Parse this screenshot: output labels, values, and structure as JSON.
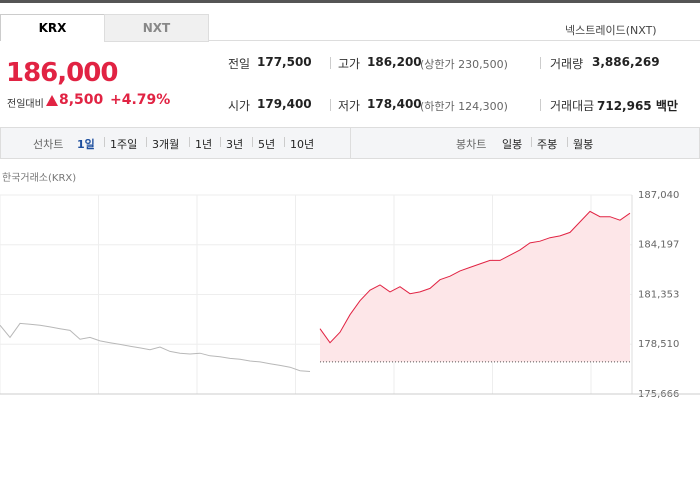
{
  "tabs": [
    "KRX",
    "NXT"
  ],
  "nxt_link": "넥스트레이드(NXT)",
  "price": {
    "current": "186,000",
    "change_label": "전일대비",
    "change": "8,500",
    "change_pct": "+4.79%"
  },
  "stats": [
    [
      {
        "label": "전일",
        "value": "177,500"
      },
      {
        "label": "고가",
        "value": "186,200",
        "note": "(상한가 230,500)"
      },
      {
        "label": "거래량",
        "value": "3,886,269"
      }
    ],
    [
      {
        "label": "시가",
        "value": "179,400"
      },
      {
        "label": "저가",
        "value": "178,400",
        "note": "(하한가 124,300)"
      },
      {
        "label": "거래대금",
        "value": "712,965 백만"
      }
    ]
  ],
  "line_chart": {
    "label": "선차트",
    "periods": [
      "1일",
      "1주일",
      "3개월",
      "1년",
      "3년",
      "5년",
      "10년"
    ]
  },
  "candle_chart": {
    "label": "봉차트",
    "periods": [
      "일봉",
      "주봉",
      "월봉"
    ]
  },
  "chart_data": {
    "type": "line",
    "source": "한국거래소(KRX)",
    "ylim": [
      175666,
      187040
    ],
    "yticks": [
      {
        "value": 187040,
        "label": "187,040"
      },
      {
        "value": 184197,
        "label": "184,197"
      },
      {
        "value": 181353,
        "label": "181,353"
      },
      {
        "value": 178510,
        "label": "178,510"
      },
      {
        "value": 175666,
        "label": "175,666"
      }
    ],
    "grid": true,
    "baseline": 177500,
    "series": [
      {
        "color": "#b8b8b8",
        "values": [
          179600,
          178900,
          179700,
          179650,
          179600,
          179500,
          179400,
          179300,
          178800,
          178900,
          178700,
          178600,
          178500,
          178400,
          178300,
          178200,
          178350,
          178100,
          178000,
          177950,
          178000,
          177850,
          177800,
          177700,
          177650,
          177550,
          177500,
          177400,
          177300,
          177200,
          177000,
          176950,
          null,
          null,
          null,
          null,
          null,
          null,
          null,
          null,
          null,
          null,
          null,
          null,
          null,
          null,
          null,
          null,
          null,
          null,
          null,
          null,
          null,
          null,
          null,
          null,
          null,
          null,
          null,
          null,
          null,
          null,
          null,
          null
        ]
      },
      {
        "color": "#e12343",
        "fill": "#fde6e8",
        "values": [
          null,
          null,
          null,
          null,
          null,
          null,
          null,
          null,
          null,
          null,
          null,
          null,
          null,
          null,
          null,
          null,
          null,
          null,
          null,
          null,
          null,
          null,
          null,
          null,
          null,
          null,
          null,
          null,
          null,
          null,
          null,
          null,
          179400,
          178600,
          179200,
          180200,
          181000,
          181600,
          181900,
          181500,
          181800,
          181400,
          181500,
          181700,
          182200,
          182400,
          182700,
          182900,
          183100,
          183300,
          183300,
          183600,
          183900,
          184300,
          184400,
          184600,
          184700,
          184900,
          185500,
          186100,
          185800,
          185800,
          185600,
          186000
        ]
      }
    ]
  }
}
